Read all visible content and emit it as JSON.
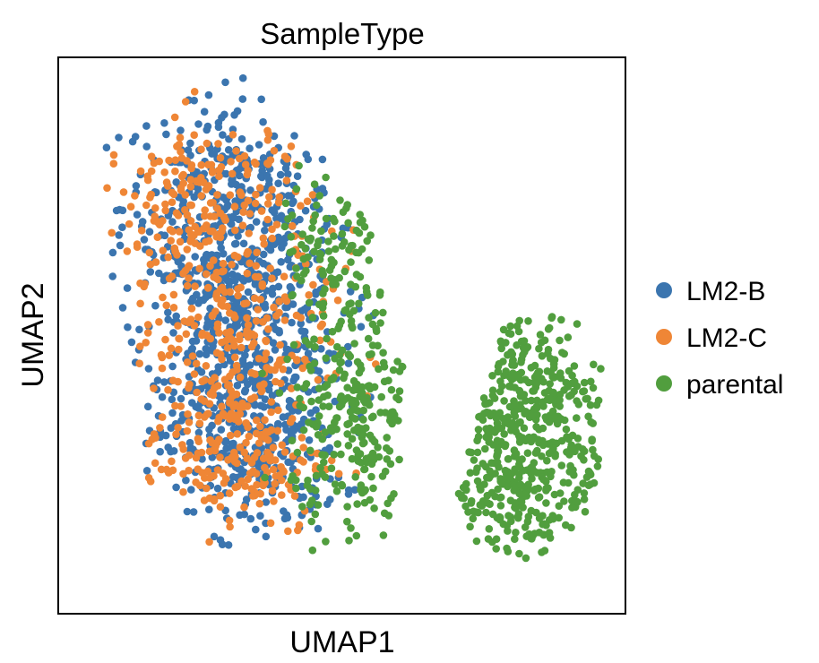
{
  "chart_data": {
    "type": "scatter",
    "title": "SampleType",
    "xlabel": "UMAP1",
    "ylabel": "UMAP2",
    "xticks": [],
    "yticks": [],
    "grid": false,
    "legend_position": "right",
    "series": [
      {
        "name": "LM2-B",
        "color": "#3b75af",
        "clusters": [
          {
            "center": [
              -2.2,
              3.2
            ],
            "spread": [
              1.5,
              1.4
            ],
            "count": 360
          },
          {
            "center": [
              -1.8,
              0.0
            ],
            "spread": [
              1.4,
              1.3
            ],
            "count": 380
          },
          {
            "center": [
              -1.6,
              -3.0
            ],
            "spread": [
              1.3,
              1.1
            ],
            "count": 300
          }
        ]
      },
      {
        "name": "LM2-C",
        "color": "#ef8636",
        "clusters": [
          {
            "center": [
              -2.8,
              3.0
            ],
            "spread": [
              1.5,
              1.3
            ],
            "count": 230
          },
          {
            "center": [
              -2.2,
              -0.3
            ],
            "spread": [
              1.4,
              1.3
            ],
            "count": 220
          },
          {
            "center": [
              -2.0,
              -3.2
            ],
            "spread": [
              1.3,
              1.0
            ],
            "count": 180
          }
        ]
      },
      {
        "name": "parental",
        "color": "#519e3e",
        "clusters": [
          {
            "center": [
              5.8,
              -2.4
            ],
            "spread": [
              1.3,
              2.1
            ],
            "count": 520
          },
          {
            "center": [
              1.4,
              -2.4
            ],
            "spread": [
              0.9,
              1.5
            ],
            "count": 240
          },
          {
            "center": [
              0.8,
              1.6
            ],
            "spread": [
              0.8,
              1.3
            ],
            "count": 110
          }
        ]
      }
    ]
  }
}
